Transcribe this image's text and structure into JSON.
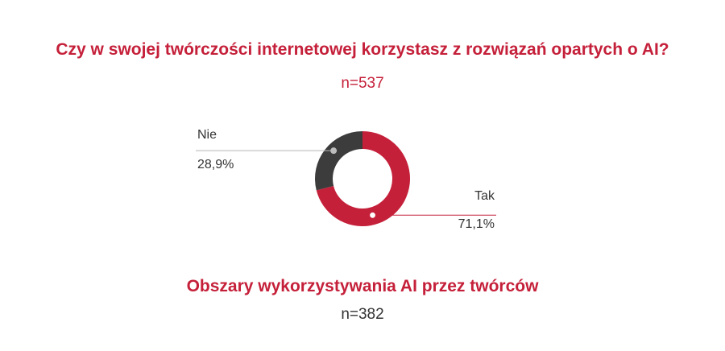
{
  "colors": {
    "tak": "#c5203a",
    "nie": "#3c3c3c",
    "title": "#c5203a"
  },
  "header": {
    "title": "Czy w swojej twórczości internetowej korzystasz z rozwiązań opartych o AI?",
    "n": "n=537"
  },
  "chart_data": {
    "type": "pie",
    "title": "Czy w swojej twórczości internetowej korzystasz z rozwiązań opartych o AI?",
    "categories": [
      "Tak",
      "Nie"
    ],
    "values": [
      71.1,
      28.9
    ],
    "labels": [
      "71,1%",
      "28,9%"
    ]
  },
  "section2": {
    "title": "Obszary wykorzystywania AI przez twórców",
    "n": "n=382"
  }
}
